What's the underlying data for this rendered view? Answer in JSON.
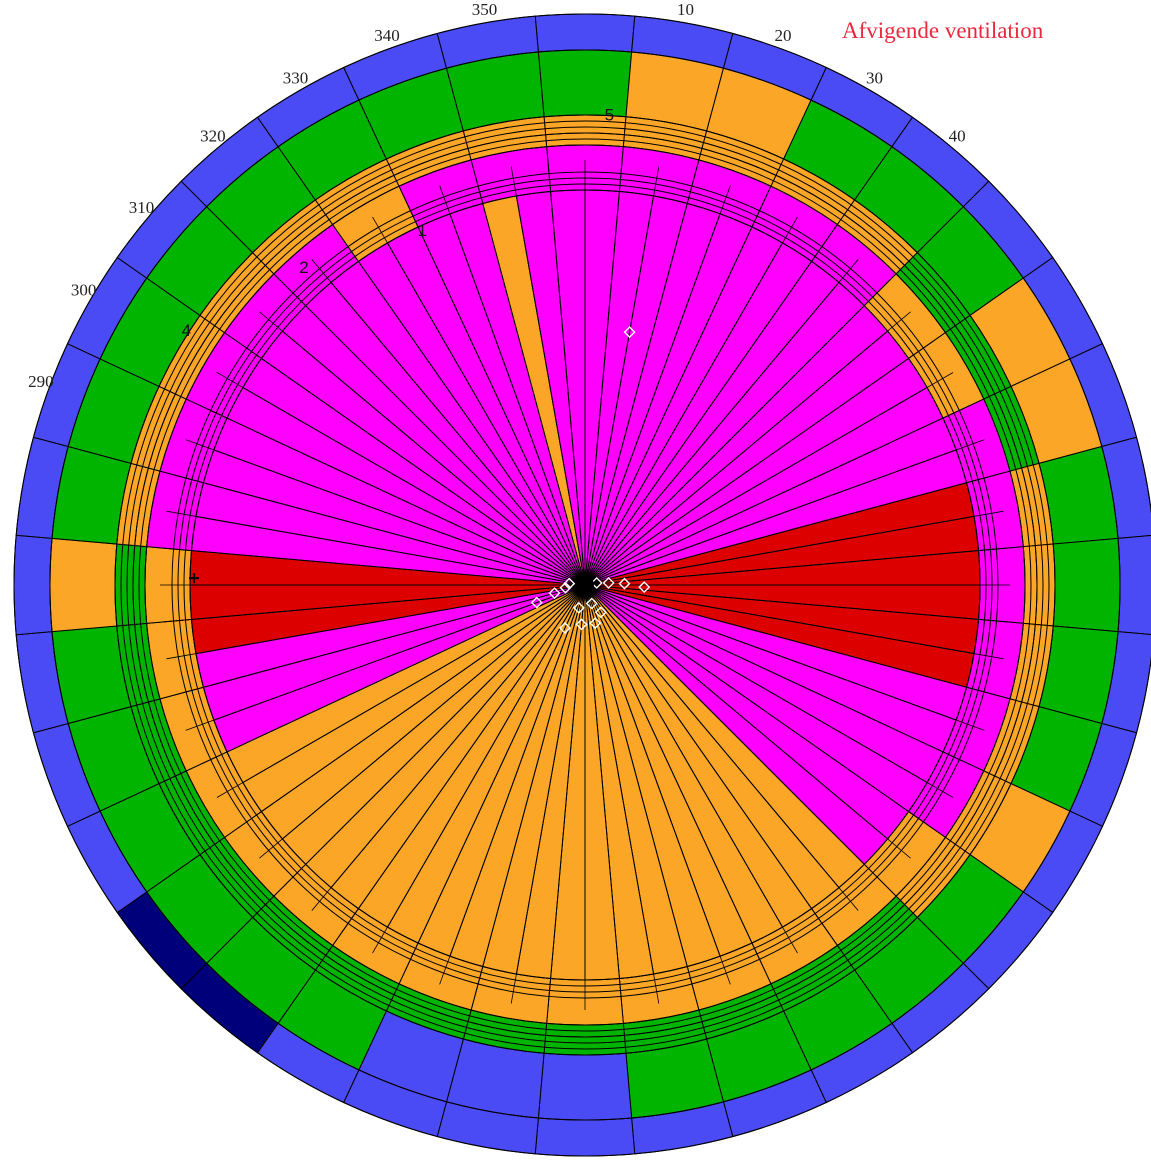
{
  "chart_data": {
    "type": "polar-sector",
    "title": "Afvigende ventilation",
    "title_color": "#e8283c",
    "angle_labels": [
      "10",
      "20",
      "30",
      "40",
      "290",
      "300",
      "310",
      "320",
      "330",
      "340",
      "350"
    ],
    "ring_labels": [
      "1",
      "2",
      "4",
      "5"
    ],
    "colors": {
      "blue": "#4b4bf5",
      "darkblue": "#00007a",
      "green": "#00b400",
      "orange": "#fca628",
      "magenta": "#ff00ff",
      "red": "#dc0000"
    },
    "inner_by_angle": [
      {
        "from": 300,
        "to": 330,
        "zone": "orange"
      },
      {
        "from": 330,
        "to": 345,
        "zone": "magenta"
      },
      {
        "from": 345,
        "to": 352,
        "zone": "orange"
      },
      {
        "from": 352,
        "to": 450,
        "zone": "magenta"
      },
      {
        "from": 450,
        "to": 465,
        "zone": "red"
      },
      {
        "from": 465,
        "to": 480,
        "zone": "magenta"
      },
      {
        "from": 480,
        "to": 510,
        "zone": "orange"
      },
      {
        "from": 510,
        "to": 535,
        "zone": "magenta"
      },
      {
        "from": 535,
        "to": 595,
        "zone": "orange"
      },
      {
        "from": 595,
        "to": 630,
        "zone": "magenta"
      },
      {
        "from": 630,
        "to": 640,
        "zone": "orange"
      }
    ],
    "markers": {
      "white_diamonds": [
        {
          "angle": 250,
          "r": 0.13
        },
        {
          "angle": 255,
          "r": 0.08
        },
        {
          "angle": 262,
          "r": 0.05
        },
        {
          "angle": 275,
          "r": 0.04
        },
        {
          "angle": 80,
          "r": 0.03
        },
        {
          "angle": 85,
          "r": 0.06
        },
        {
          "angle": 88,
          "r": 0.1
        },
        {
          "angle": 92,
          "r": 0.15
        },
        {
          "angle": 10,
          "r": 0.65
        },
        {
          "angle": 150,
          "r": 0.08
        },
        {
          "angle": 165,
          "r": 0.1
        },
        {
          "angle": 185,
          "r": 0.1
        },
        {
          "angle": 205,
          "r": 0.12
        },
        {
          "angle": 160,
          "r": 0.05
        },
        {
          "angle": 195,
          "r": 0.06
        }
      ],
      "black_markers": [
        {
          "angle": 271,
          "r": 0.99
        }
      ]
    }
  }
}
